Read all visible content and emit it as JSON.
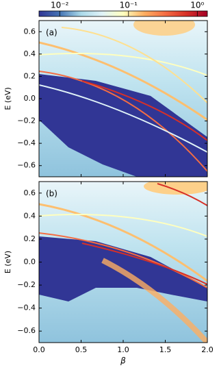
{
  "chart_data": [
    {
      "type": "colorbar",
      "scale": "log",
      "xlim": [
        0.005,
        1.4
      ],
      "xticks": [
        {
          "value": 0.01,
          "label": "10⁻²"
        },
        {
          "value": 0.1,
          "label": "10⁻¹"
        },
        {
          "value": 1,
          "label": "10⁰"
        }
      ],
      "colors": [
        "#313695",
        "#4575b4",
        "#abd9e9",
        "#e0f3f8",
        "#ffffbf",
        "#fdae61",
        "#f46d43",
        "#d73027",
        "#a50026"
      ]
    },
    {
      "type": "heatmap",
      "annotation": "(a)",
      "ylabel": "E (eV)",
      "xlim": [
        0,
        2
      ],
      "ylim": [
        -0.7,
        0.7
      ],
      "yticks": [
        {
          "value": -0.6,
          "label": "−0.6"
        },
        {
          "value": -0.4,
          "label": "−0.4"
        },
        {
          "value": -0.2,
          "label": "−0.2"
        },
        {
          "value": 0,
          "label": "0.0"
        },
        0.2,
        0.4,
        0.6
      ]
    },
    {
      "type": "heatmap",
      "annotation": "(b)",
      "ylabel": "E (eV)",
      "xlabel": "β",
      "xlim": [
        0,
        2
      ],
      "ylim": [
        -0.7,
        0.7
      ],
      "xticks": [
        {
          "value": 0,
          "label": "0.0"
        },
        {
          "value": 0.5,
          "label": "0.5"
        },
        {
          "value": 1,
          "label": "1.0"
        },
        {
          "value": 1.5,
          "label": "1.5"
        },
        {
          "value": 2,
          "label": "2.0"
        }
      ],
      "yticks": [
        {
          "value": -0.6,
          "label": "−0.6"
        },
        {
          "value": -0.4,
          "label": "−0.4"
        },
        {
          "value": -0.2,
          "label": "−0.2"
        },
        {
          "value": 0,
          "label": "0.0"
        },
        0.2,
        0.4,
        0.6
      ]
    }
  ]
}
